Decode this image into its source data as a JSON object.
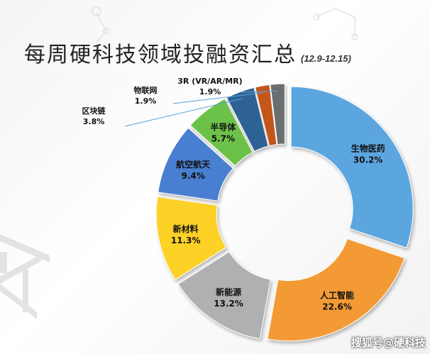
{
  "header": {
    "title": "每周硬科技领域投融资汇总",
    "subtitle": "(12.9-12.15)"
  },
  "watermark": "搜狐号@硬科技",
  "chart_data": {
    "type": "pie",
    "title": "每周硬科技领域投融资汇总",
    "subtitle": "(12.9-12.15)",
    "slices": [
      {
        "label": "生物医药",
        "value": 30.2,
        "display": "30.2%",
        "color": "#5ba6e0"
      },
      {
        "label": "人工智能",
        "value": 22.6,
        "display": "22.6%",
        "color": "#f39a36"
      },
      {
        "label": "新能源",
        "value": 13.2,
        "display": "13.2%",
        "color": "#aeb0b2"
      },
      {
        "label": "新材料",
        "value": 11.3,
        "display": "11.3%",
        "color": "#fdd128"
      },
      {
        "label": "航空航天",
        "value": 9.4,
        "display": "9.4%",
        "color": "#4a7fd0"
      },
      {
        "label": "半导体",
        "value": 5.7,
        "display": "5.7%",
        "color": "#6cc24a"
      },
      {
        "label": "区块链",
        "value": 3.8,
        "display": "3.8%",
        "color": "#2e6295"
      },
      {
        "label": "物联网",
        "value": 1.9,
        "display": "1.9%",
        "color": "#c4561b"
      },
      {
        "label": "3R (VR/AR/MR)",
        "value": 1.9,
        "display": "1.9%",
        "color": "#6b6e70"
      }
    ]
  }
}
